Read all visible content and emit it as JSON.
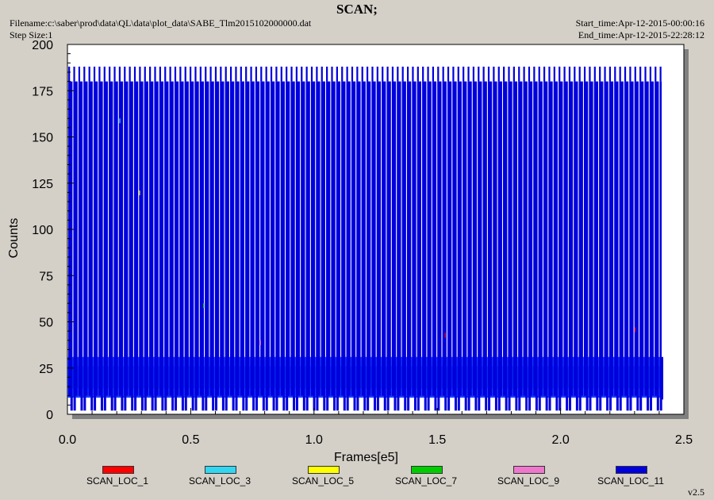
{
  "header": {
    "title": "SCAN;",
    "filename": "Filename:c:\\saber\\prod\\data\\QL\\data\\plot_data\\SABE_Tlm2015102000000.dat",
    "step_size": "Step Size:1",
    "start_time": "Start_time:Apr-12-2015-00:00:16",
    "end_time": "End_time:Apr-12-2015-22:28:12"
  },
  "version": "v2.5",
  "chart_data": {
    "type": "line",
    "xlabel": "Frames[e5]",
    "ylabel": "Counts",
    "xlim": [
      0,
      2.5
    ],
    "ylim": [
      0,
      200
    ],
    "xticks": [
      "0.0",
      "0.5",
      "1.0",
      "1.5",
      "2.0",
      "2.5"
    ],
    "yticks": [
      "0",
      "25",
      "50",
      "75",
      "100",
      "125",
      "150",
      "175",
      "200"
    ],
    "grid": false,
    "legend_placement": "bottom",
    "series": [
      {
        "name": "SCAN_LOC_1",
        "color": "#ff0000"
      },
      {
        "name": "SCAN_LOC_3",
        "color": "#33d6f0"
      },
      {
        "name": "SCAN_LOC_5",
        "color": "#ffff00"
      },
      {
        "name": "SCAN_LOC_7",
        "color": "#00cc00"
      },
      {
        "name": "SCAN_LOC_9",
        "color": "#ee77cc"
      },
      {
        "name": "SCAN_LOC_11",
        "color": "#0000dd"
      }
    ],
    "pattern": {
      "x_start": 0.0,
      "x_end": 2.41,
      "cycle_period": 0.0205,
      "high_level": 180,
      "peak_level": 188,
      "dip_level": 2,
      "band_low": 10,
      "band_high": 30
    }
  }
}
